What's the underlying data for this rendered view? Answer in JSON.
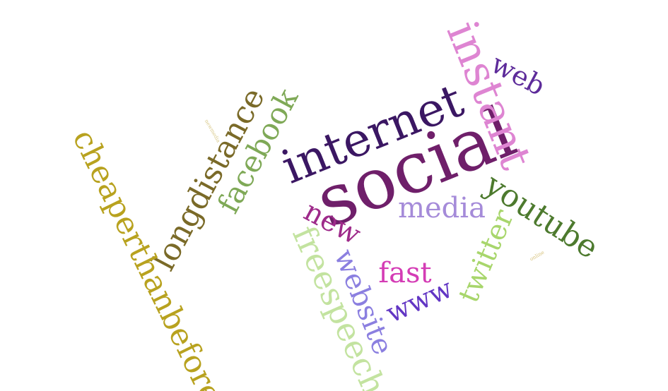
{
  "words": [
    {
      "id": "social",
      "text": "social",
      "color": "#6f1f6a"
    },
    {
      "id": "internet",
      "text": "internet",
      "color": "#3b1763"
    },
    {
      "id": "instant",
      "text": "instant",
      "color": "#de85d2"
    },
    {
      "id": "web",
      "text": "web",
      "color": "#5d2b9a"
    },
    {
      "id": "media",
      "text": "media",
      "color": "#a58bd9"
    },
    {
      "id": "new",
      "text": "new",
      "color": "#9e2a8a"
    },
    {
      "id": "youtube",
      "text": "youtube",
      "color": "#4d7a2e"
    },
    {
      "id": "twitter",
      "text": "twitter",
      "color": "#a8d66c"
    },
    {
      "id": "fast",
      "text": "fast",
      "color": "#d43cb5"
    },
    {
      "id": "www",
      "text": "www",
      "color": "#6236c4"
    },
    {
      "id": "website",
      "text": "website",
      "color": "#8b7fe0"
    },
    {
      "id": "freespeech",
      "text": "freespeech",
      "color": "#c3e3a0"
    },
    {
      "id": "facebook",
      "text": "facebook",
      "color": "#7fa957"
    },
    {
      "id": "longdistance",
      "text": "longdistance",
      "color": "#7a6a28"
    },
    {
      "id": "cheaperthanbefore",
      "text": "cheaperthanbefore",
      "color": "#b8a21f"
    },
    {
      "id": "newmedia",
      "text": "newmedia",
      "color": "#d9c98a"
    },
    {
      "id": "online",
      "text": "online",
      "color": "#d6c17a"
    }
  ]
}
